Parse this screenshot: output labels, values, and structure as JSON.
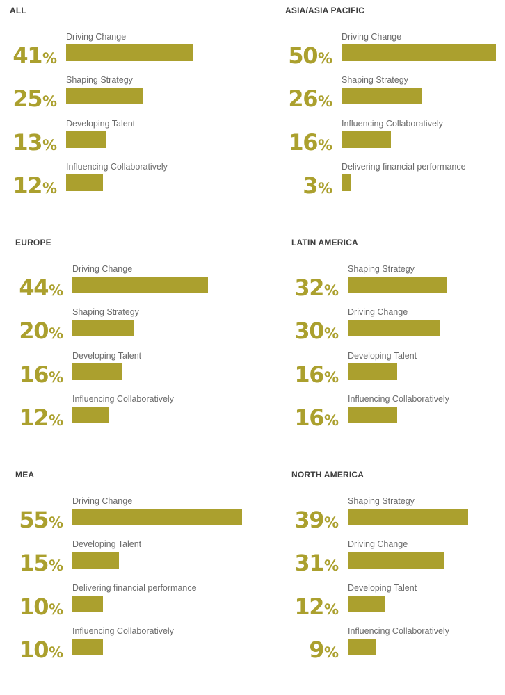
{
  "chart_data": [
    {
      "type": "bar",
      "orientation": "horizontal",
      "title": "ALL",
      "unit": "%",
      "categories": [
        "Driving Change",
        "Shaping Strategy",
        "Developing Talent",
        "Influencing Collaboratively"
      ],
      "values": [
        41,
        25,
        13,
        12
      ],
      "xlim": [
        0,
        50
      ]
    },
    {
      "type": "bar",
      "orientation": "horizontal",
      "title": "ASIA/ASIA PACIFIC",
      "unit": "%",
      "categories": [
        "Driving Change",
        "Shaping Strategy",
        "Influencing Collaboratively",
        "Delivering financial performance"
      ],
      "values": [
        50,
        26,
        16,
        3
      ],
      "xlim": [
        0,
        50
      ]
    },
    {
      "type": "bar",
      "orientation": "horizontal",
      "title": "EUROPE",
      "unit": "%",
      "categories": [
        "Driving Change",
        "Shaping Strategy",
        "Developing Talent",
        "Influencing Collaboratively"
      ],
      "values": [
        44,
        20,
        16,
        12
      ],
      "xlim": [
        0,
        55
      ]
    },
    {
      "type": "bar",
      "orientation": "horizontal",
      "title": "LATIN AMERICA",
      "unit": "%",
      "categories": [
        "Shaping Strategy",
        "Driving Change",
        "Developing Talent",
        "Influencing Collaboratively"
      ],
      "values": [
        32,
        30,
        16,
        16
      ],
      "xlim": [
        0,
        55
      ]
    },
    {
      "type": "bar",
      "orientation": "horizontal",
      "title": "MEA",
      "unit": "%",
      "categories": [
        "Driving Change",
        "Developing Talent",
        "Delivering financial performance",
        "Influencing Collaboratively"
      ],
      "values": [
        55,
        15,
        10,
        10
      ],
      "xlim": [
        0,
        55
      ]
    },
    {
      "type": "bar",
      "orientation": "horizontal",
      "title": "NORTH AMERICA",
      "unit": "%",
      "categories": [
        "Shaping Strategy",
        "Driving Change",
        "Developing Talent",
        "Influencing Collaboratively"
      ],
      "values": [
        39,
        31,
        12,
        9
      ],
      "xlim": [
        0,
        55
      ]
    }
  ],
  "colors": {
    "accent": "#aba02e",
    "title": "#3d3d3d",
    "label": "#6b6b6b"
  }
}
